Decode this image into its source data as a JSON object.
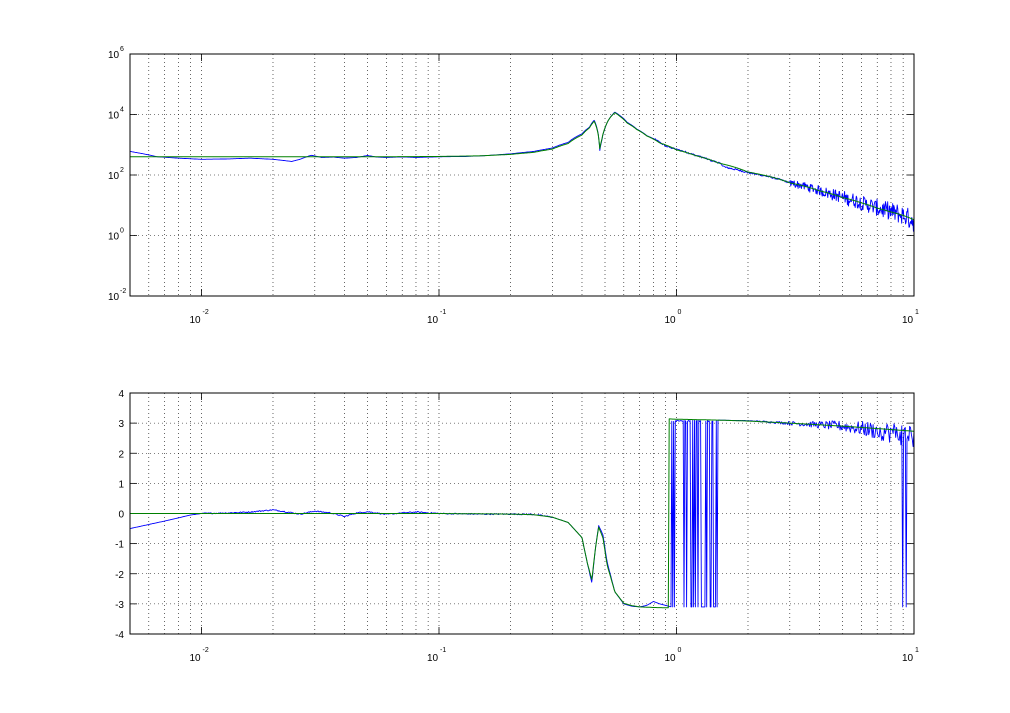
{
  "chart_data": [
    {
      "type": "line",
      "title": "",
      "xlabel": "",
      "ylabel": "",
      "x_scale": "log",
      "y_scale": "log",
      "xlim": [
        0.005,
        10
      ],
      "ylim": [
        0.01,
        1000000
      ],
      "grid": true,
      "x_ticks": [
        {
          "base": "10",
          "exp": "-2"
        },
        {
          "base": "10",
          "exp": "-1"
        },
        {
          "base": "10",
          "exp": "0"
        },
        {
          "base": "10",
          "exp": "1"
        }
      ],
      "y_ticks": [
        {
          "base": "10",
          "exp": "-2"
        },
        {
          "base": "10",
          "exp": "0"
        },
        {
          "base": "10",
          "exp": "2"
        },
        {
          "base": "10",
          "exp": "4"
        },
        {
          "base": "10",
          "exp": "6"
        }
      ],
      "series": [
        {
          "color": "#0000ff",
          "style": "measured-noisy",
          "points": [
            [
              0.005,
              600
            ],
            [
              0.0065,
              400
            ],
            [
              0.008,
              360
            ],
            [
              0.01,
              330
            ],
            [
              0.013,
              340
            ],
            [
              0.016,
              360
            ],
            [
              0.02,
              330
            ],
            [
              0.024,
              280
            ],
            [
              0.026,
              330
            ],
            [
              0.029,
              450
            ],
            [
              0.032,
              380
            ],
            [
              0.036,
              390
            ],
            [
              0.04,
              360
            ],
            [
              0.045,
              380
            ],
            [
              0.05,
              440
            ],
            [
              0.055,
              390
            ],
            [
              0.06,
              380
            ],
            [
              0.07,
              395
            ],
            [
              0.08,
              380
            ],
            [
              0.1,
              400
            ],
            [
              0.13,
              410
            ],
            [
              0.16,
              440
            ],
            [
              0.2,
              500
            ],
            [
              0.25,
              600
            ],
            [
              0.3,
              780
            ],
            [
              0.35,
              1200
            ],
            [
              0.4,
              2300
            ],
            [
              0.43,
              3800
            ],
            [
              0.45,
              6500
            ],
            [
              0.465,
              3000
            ],
            [
              0.475,
              600
            ],
            [
              0.485,
              1400
            ],
            [
              0.5,
              3500
            ],
            [
              0.52,
              7000
            ],
            [
              0.55,
              12000
            ],
            [
              0.58,
              9000
            ],
            [
              0.62,
              5500
            ],
            [
              0.68,
              3300
            ],
            [
              0.75,
              2000
            ],
            [
              0.85,
              1200
            ],
            [
              0.9,
              900
            ],
            [
              1.0,
              700
            ],
            [
              1.2,
              450
            ],
            [
              1.4,
              300
            ],
            [
              1.5,
              260
            ],
            [
              1.6,
              180
            ],
            [
              2.0,
              120
            ],
            [
              3.0,
              55
            ],
            [
              4.0,
              30
            ],
            [
              5.0,
              18
            ],
            [
              6.0,
              12
            ],
            [
              7.0,
              8
            ],
            [
              8.0,
              6
            ],
            [
              9.0,
              4.5
            ],
            [
              10.0,
              3
            ]
          ],
          "noise_from_x": 3,
          "noise_amplitude_decades": 0.25
        },
        {
          "color": "#008000",
          "style": "model-smooth",
          "points": [
            [
              0.005,
              400
            ],
            [
              0.01,
              400
            ],
            [
              0.02,
              400
            ],
            [
              0.05,
              400
            ],
            [
              0.1,
              410
            ],
            [
              0.15,
              430
            ],
            [
              0.2,
              480
            ],
            [
              0.25,
              560
            ],
            [
              0.3,
              720
            ],
            [
              0.35,
              1100
            ],
            [
              0.4,
              2100
            ],
            [
              0.43,
              3600
            ],
            [
              0.45,
              6000
            ],
            [
              0.465,
              2800
            ],
            [
              0.475,
              700
            ],
            [
              0.485,
              1500
            ],
            [
              0.5,
              3600
            ],
            [
              0.52,
              7000
            ],
            [
              0.55,
              11500
            ],
            [
              0.58,
              8500
            ],
            [
              0.62,
              5200
            ],
            [
              0.68,
              3200
            ],
            [
              0.75,
              1950
            ],
            [
              0.85,
              1150
            ],
            [
              1.0,
              680
            ],
            [
              1.2,
              440
            ],
            [
              1.5,
              250
            ],
            [
              2.0,
              125
            ],
            [
              3.0,
              55
            ],
            [
              4.0,
              30
            ],
            [
              5.0,
              18
            ],
            [
              6.0,
              12
            ],
            [
              7.0,
              8
            ],
            [
              8.0,
              6
            ],
            [
              9.0,
              4.6
            ],
            [
              10.0,
              3.3
            ]
          ]
        }
      ]
    },
    {
      "type": "line",
      "title": "",
      "xlabel": "",
      "ylabel": "",
      "x_scale": "log",
      "y_scale": "linear",
      "xlim": [
        0.005,
        10
      ],
      "ylim": [
        -4,
        4
      ],
      "grid": true,
      "x_ticks": [
        {
          "base": "10",
          "exp": "-2"
        },
        {
          "base": "10",
          "exp": "-1"
        },
        {
          "base": "10",
          "exp": "0"
        },
        {
          "base": "10",
          "exp": "1"
        }
      ],
      "y_ticks": [
        {
          "value": 4,
          "label": "4"
        },
        {
          "value": 3,
          "label": "3"
        },
        {
          "value": 2,
          "label": "2"
        },
        {
          "value": 1,
          "label": "1"
        },
        {
          "value": 0,
          "label": "0"
        },
        {
          "value": -1,
          "label": "-1"
        },
        {
          "value": -2,
          "label": "-2"
        },
        {
          "value": -3,
          "label": "-3"
        },
        {
          "value": -4,
          "label": "-4"
        }
      ],
      "series": [
        {
          "color": "#0000ff",
          "style": "measured-noisy",
          "points": [
            [
              0.005,
              -0.5
            ],
            [
              0.007,
              -0.25
            ],
            [
              0.009,
              -0.05
            ],
            [
              0.01,
              0.0
            ],
            [
              0.013,
              0.02
            ],
            [
              0.016,
              0.05
            ],
            [
              0.02,
              0.12
            ],
            [
              0.023,
              0.05
            ],
            [
              0.026,
              -0.02
            ],
            [
              0.03,
              0.08
            ],
            [
              0.035,
              0.02
            ],
            [
              0.04,
              -0.1
            ],
            [
              0.045,
              0.02
            ],
            [
              0.05,
              0.06
            ],
            [
              0.06,
              -0.03
            ],
            [
              0.07,
              0.02
            ],
            [
              0.08,
              0.05
            ],
            [
              0.1,
              0.0
            ],
            [
              0.15,
              -0.02
            ],
            [
              0.2,
              -0.02
            ],
            [
              0.25,
              -0.03
            ],
            [
              0.3,
              -0.12
            ],
            [
              0.35,
              -0.3
            ],
            [
              0.4,
              -0.8
            ],
            [
              0.42,
              -1.6
            ],
            [
              0.44,
              -2.3
            ],
            [
              0.455,
              -1.2
            ],
            [
              0.47,
              -0.4
            ],
            [
              0.49,
              -0.7
            ],
            [
              0.51,
              -1.6
            ],
            [
              0.55,
              -2.6
            ],
            [
              0.6,
              -3.0
            ],
            [
              0.65,
              -3.08
            ],
            [
              0.7,
              -3.1
            ],
            [
              0.75,
              -3.05
            ],
            [
              0.8,
              -2.92
            ],
            [
              0.85,
              -3.0
            ],
            [
              0.9,
              -3.05
            ],
            [
              0.95,
              -3.1
            ]
          ],
          "wrap_region": [
            0.95,
            1.5
          ],
          "tail_from_x": 1.5,
          "tail_values": [
            [
              1.5,
              3.1
            ],
            [
              2,
              3.08
            ],
            [
              3,
              3.0
            ],
            [
              5,
              2.9
            ],
            [
              7,
              2.75
            ],
            [
              10,
              2.6
            ]
          ],
          "tail_noise": 0.45
        },
        {
          "color": "#008000",
          "style": "model-smooth",
          "points": [
            [
              0.005,
              0.0
            ],
            [
              0.1,
              0.0
            ],
            [
              0.2,
              -0.02
            ],
            [
              0.25,
              -0.04
            ],
            [
              0.3,
              -0.12
            ],
            [
              0.35,
              -0.3
            ],
            [
              0.4,
              -0.8
            ],
            [
              0.42,
              -1.6
            ],
            [
              0.44,
              -2.2
            ],
            [
              0.455,
              -1.2
            ],
            [
              0.47,
              -0.45
            ],
            [
              0.49,
              -0.8
            ],
            [
              0.51,
              -1.7
            ],
            [
              0.55,
              -2.6
            ],
            [
              0.6,
              -2.98
            ],
            [
              0.65,
              -3.06
            ],
            [
              0.7,
              -3.1
            ],
            [
              0.8,
              -3.12
            ],
            [
              0.93,
              -3.13
            ],
            [
              0.931,
              3.14
            ],
            [
              1.0,
              3.13
            ],
            [
              1.5,
              3.1
            ],
            [
              2.0,
              3.07
            ],
            [
              3.0,
              3.0
            ],
            [
              5.0,
              2.9
            ],
            [
              7.0,
              2.82
            ],
            [
              10.0,
              2.73
            ]
          ]
        }
      ]
    }
  ]
}
